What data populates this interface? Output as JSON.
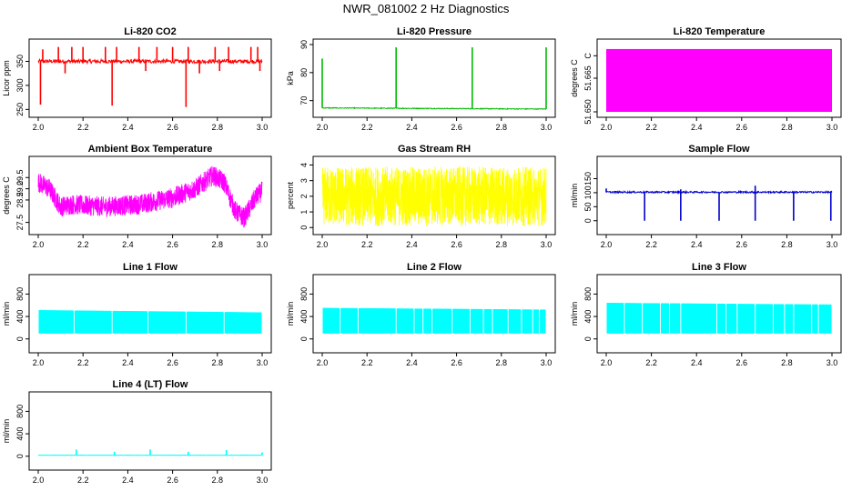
{
  "figure_title": "NWR_081002  2 Hz Diagnostics",
  "chart_data": [
    {
      "type": "line",
      "title": "Li-820 CO2",
      "ylabel": "Licor ppm",
      "color": "#ff0000",
      "xlim": [
        2.0,
        3.0
      ],
      "ylim": [
        245,
        385
      ],
      "x_ticks": [
        "2.0",
        "2.2",
        "2.4",
        "2.6",
        "2.8",
        "3.0"
      ],
      "y_ticks": [
        {
          "v": 250,
          "l": "250"
        },
        {
          "v": 300,
          "l": "300"
        },
        {
          "v": 350,
          "l": "350"
        }
      ],
      "series": [
        {
          "pattern": "baseline-spikes",
          "baseline": 350,
          "noise": 4,
          "spikes_up": [
            {
              "x": 2.02,
              "y": 375
            },
            {
              "x": 2.09,
              "y": 380
            },
            {
              "x": 2.15,
              "y": 380
            },
            {
              "x": 2.2,
              "y": 380
            },
            {
              "x": 2.3,
              "y": 380
            },
            {
              "x": 2.35,
              "y": 380
            },
            {
              "x": 2.45,
              "y": 380
            },
            {
              "x": 2.53,
              "y": 380
            },
            {
              "x": 2.6,
              "y": 380
            },
            {
              "x": 2.67,
              "y": 380
            },
            {
              "x": 2.79,
              "y": 380
            },
            {
              "x": 2.85,
              "y": 380
            },
            {
              "x": 2.95,
              "y": 380
            },
            {
              "x": 2.98,
              "y": 380
            }
          ],
          "spikes_down": [
            {
              "x": 2.01,
              "y": 260
            },
            {
              "x": 2.12,
              "y": 325
            },
            {
              "x": 2.33,
              "y": 258
            },
            {
              "x": 2.48,
              "y": 330
            },
            {
              "x": 2.66,
              "y": 255
            },
            {
              "x": 2.72,
              "y": 325
            },
            {
              "x": 2.81,
              "y": 330
            },
            {
              "x": 2.99,
              "y": 330
            }
          ]
        }
      ]
    },
    {
      "type": "line",
      "title": "Li-820 Pressure",
      "ylabel": "kPa",
      "color": "#00bb00",
      "xlim": [
        2.0,
        3.0
      ],
      "ylim": [
        66,
        90
      ],
      "x_ticks": [
        "2.0",
        "2.2",
        "2.4",
        "2.6",
        "2.8",
        "3.0"
      ],
      "y_ticks": [
        {
          "v": 70,
          "l": "70"
        },
        {
          "v": 80,
          "l": "80"
        },
        {
          "v": 90,
          "l": "90"
        }
      ],
      "series": [
        {
          "pattern": "baseline-spikes",
          "baseline": 67.4,
          "noise": 0.15,
          "trend": -0.4,
          "spikes_up": [
            {
              "x": 2.0,
              "y": 85
            },
            {
              "x": 2.33,
              "y": 89
            },
            {
              "x": 2.67,
              "y": 89
            },
            {
              "x": 3.0,
              "y": 89
            }
          ],
          "spikes_down": []
        }
      ]
    },
    {
      "type": "area",
      "title": "Li-820 Temperature",
      "ylabel": "degrees C",
      "color": "#ff00ff",
      "xlim": [
        2.0,
        3.0
      ],
      "ylim": [
        51.65,
        51.68
      ],
      "x_ticks": [
        "2.0",
        "2.2",
        "2.4",
        "2.6",
        "2.8",
        "3.0"
      ],
      "y_ticks": [
        {
          "v": 51.65,
          "l": "51.650"
        },
        {
          "v": 51.665,
          "l": "51.665"
        },
        {
          "v": 51.675,
          "l": "C"
        }
      ],
      "series": [
        {
          "pattern": "band",
          "low": 51.65,
          "high": 51.678
        }
      ]
    },
    {
      "type": "line",
      "title": "Ambient Box Temperature",
      "ylabel": "degrees C",
      "color": "#ff00ff",
      "xlim": [
        2.0,
        3.0
      ],
      "ylim": [
        27.2,
        30.2
      ],
      "x_ticks": [
        "2.0",
        "2.2",
        "2.4",
        "2.6",
        "2.8",
        "3.0"
      ],
      "y_ticks": [
        {
          "v": 27.5,
          "l": "27.5"
        },
        {
          "v": 28.5,
          "l": "28.5"
        },
        {
          "v": 29.0,
          "l": "29.0"
        },
        {
          "v": 29.5,
          "l": "29.5"
        }
      ],
      "series": [
        {
          "pattern": "noisy-curve",
          "noise": 0.45,
          "points": [
            {
              "x": 2.0,
              "y": 29.3
            },
            {
              "x": 2.05,
              "y": 29.0
            },
            {
              "x": 2.1,
              "y": 28.2
            },
            {
              "x": 2.15,
              "y": 28.3
            },
            {
              "x": 2.3,
              "y": 28.2
            },
            {
              "x": 2.45,
              "y": 28.3
            },
            {
              "x": 2.6,
              "y": 28.6
            },
            {
              "x": 2.7,
              "y": 29.0
            },
            {
              "x": 2.78,
              "y": 29.6
            },
            {
              "x": 2.83,
              "y": 29.3
            },
            {
              "x": 2.88,
              "y": 28.0
            },
            {
              "x": 2.92,
              "y": 27.7
            },
            {
              "x": 2.97,
              "y": 28.6
            },
            {
              "x": 3.0,
              "y": 28.9
            }
          ]
        }
      ]
    },
    {
      "type": "line",
      "title": "Gas Stream RH",
      "ylabel": "percent",
      "color": "#ffff00",
      "xlim": [
        2.0,
        3.0
      ],
      "ylim": [
        -0.1,
        4.2
      ],
      "x_ticks": [
        "2.0",
        "2.2",
        "2.4",
        "2.6",
        "2.8",
        "3.0"
      ],
      "y_ticks": [
        {
          "v": 0,
          "l": "0"
        },
        {
          "v": 1,
          "l": "1"
        },
        {
          "v": 2,
          "l": "2"
        },
        {
          "v": 3,
          "l": "3"
        },
        {
          "v": 4,
          "l": "4"
        }
      ],
      "series": [
        {
          "pattern": "noise-band",
          "center": 2.0,
          "amplitude": 1.9
        }
      ]
    },
    {
      "type": "line",
      "title": "Sample Flow",
      "ylabel": "ml/min",
      "color": "#0000cc",
      "xlim": [
        2.0,
        3.0
      ],
      "ylim": [
        -30,
        210
      ],
      "x_ticks": [
        "2.0",
        "2.2",
        "2.4",
        "2.6",
        "2.8",
        "3.0"
      ],
      "y_ticks": [
        {
          "v": 0,
          "l": "0"
        },
        {
          "v": 50,
          "l": "50"
        },
        {
          "v": 100,
          "l": "100"
        },
        {
          "v": 150,
          "l": "150"
        }
      ],
      "series": [
        {
          "pattern": "baseline-spikes",
          "baseline": 102,
          "noise": 3,
          "spikes_up": [
            {
              "x": 2.0,
              "y": 115
            },
            {
              "x": 2.33,
              "y": 112
            },
            {
              "x": 2.66,
              "y": 125
            }
          ],
          "spikes_down": [
            {
              "x": 2.17,
              "y": 0
            },
            {
              "x": 2.33,
              "y": 0
            },
            {
              "x": 2.5,
              "y": 0
            },
            {
              "x": 2.66,
              "y": 0
            },
            {
              "x": 2.83,
              "y": 0
            },
            {
              "x": 2.995,
              "y": 0
            }
          ]
        }
      ]
    },
    {
      "type": "area",
      "title": "Line 1 Flow",
      "ylabel": "ml/min",
      "color": "#00ffff",
      "xlim": [
        2.0,
        3.0
      ],
      "ylim": [
        -150,
        1050
      ],
      "x_ticks": [
        "2.0",
        "2.2",
        "2.4",
        "2.6",
        "2.8",
        "3.0"
      ],
      "y_ticks": [
        {
          "v": 0,
          "l": "0"
        },
        {
          "v": 400,
          "l": "400"
        },
        {
          "v": 800,
          "l": "800"
        }
      ],
      "series": [
        {
          "pattern": "band-gaps",
          "low": 100,
          "high_start": 510,
          "high_end": 470,
          "gaps": [
            2.16,
            2.33,
            2.49,
            2.66,
            2.83
          ]
        }
      ]
    },
    {
      "type": "area",
      "title": "Line 2 Flow",
      "ylabel": "ml/min",
      "color": "#00ffff",
      "xlim": [
        2.0,
        3.0
      ],
      "ylim": [
        -150,
        1050
      ],
      "x_ticks": [
        "2.0",
        "2.2",
        "2.4",
        "2.6",
        "2.8",
        "3.0"
      ],
      "y_ticks": [
        {
          "v": 0,
          "l": "0"
        },
        {
          "v": 400,
          "l": "400"
        },
        {
          "v": 800,
          "l": "800"
        }
      ],
      "series": [
        {
          "pattern": "band-gaps",
          "low": 100,
          "high_start": 550,
          "high_end": 520,
          "gaps": [
            2.08,
            2.16,
            2.33,
            2.41,
            2.45,
            2.49,
            2.58,
            2.66,
            2.72,
            2.76,
            2.83,
            2.89,
            2.94,
            2.97
          ]
        }
      ]
    },
    {
      "type": "area",
      "title": "Line 3 Flow",
      "ylabel": "ml/min",
      "color": "#00ffff",
      "xlim": [
        2.0,
        3.0
      ],
      "ylim": [
        -150,
        1050
      ],
      "x_ticks": [
        "2.0",
        "2.2",
        "2.4",
        "2.6",
        "2.8",
        "3.0"
      ],
      "y_ticks": [
        {
          "v": 0,
          "l": "0"
        },
        {
          "v": 400,
          "l": "400"
        },
        {
          "v": 800,
          "l": "800"
        }
      ],
      "series": [
        {
          "pattern": "band-gaps",
          "low": 100,
          "high_start": 640,
          "high_end": 610,
          "gaps": [
            2.08,
            2.16,
            2.24,
            2.28,
            2.33,
            2.49,
            2.53,
            2.58,
            2.66,
            2.74,
            2.79,
            2.83,
            2.91,
            2.94
          ]
        }
      ]
    },
    {
      "type": "line",
      "title": "Line 4 (LT) Flow",
      "ylabel": "ml/min",
      "color": "#00ffff",
      "xlim": [
        2.0,
        3.0
      ],
      "ylim": [
        -150,
        1050
      ],
      "x_ticks": [
        "2.0",
        "2.2",
        "2.4",
        "2.6",
        "2.8",
        "3.0"
      ],
      "y_ticks": [
        {
          "v": 0,
          "l": "0"
        },
        {
          "v": 400,
          "l": "400"
        },
        {
          "v": 800,
          "l": "800"
        }
      ],
      "series": [
        {
          "pattern": "baseline-spikes",
          "baseline": 18,
          "noise": 3,
          "spikes_up": [
            {
              "x": 2.17,
              "y": 120
            },
            {
              "x": 2.34,
              "y": 80
            },
            {
              "x": 2.5,
              "y": 120
            },
            {
              "x": 2.67,
              "y": 80
            },
            {
              "x": 2.84,
              "y": 110
            },
            {
              "x": 3.0,
              "y": 70
            }
          ],
          "spikes_down": []
        }
      ]
    }
  ]
}
